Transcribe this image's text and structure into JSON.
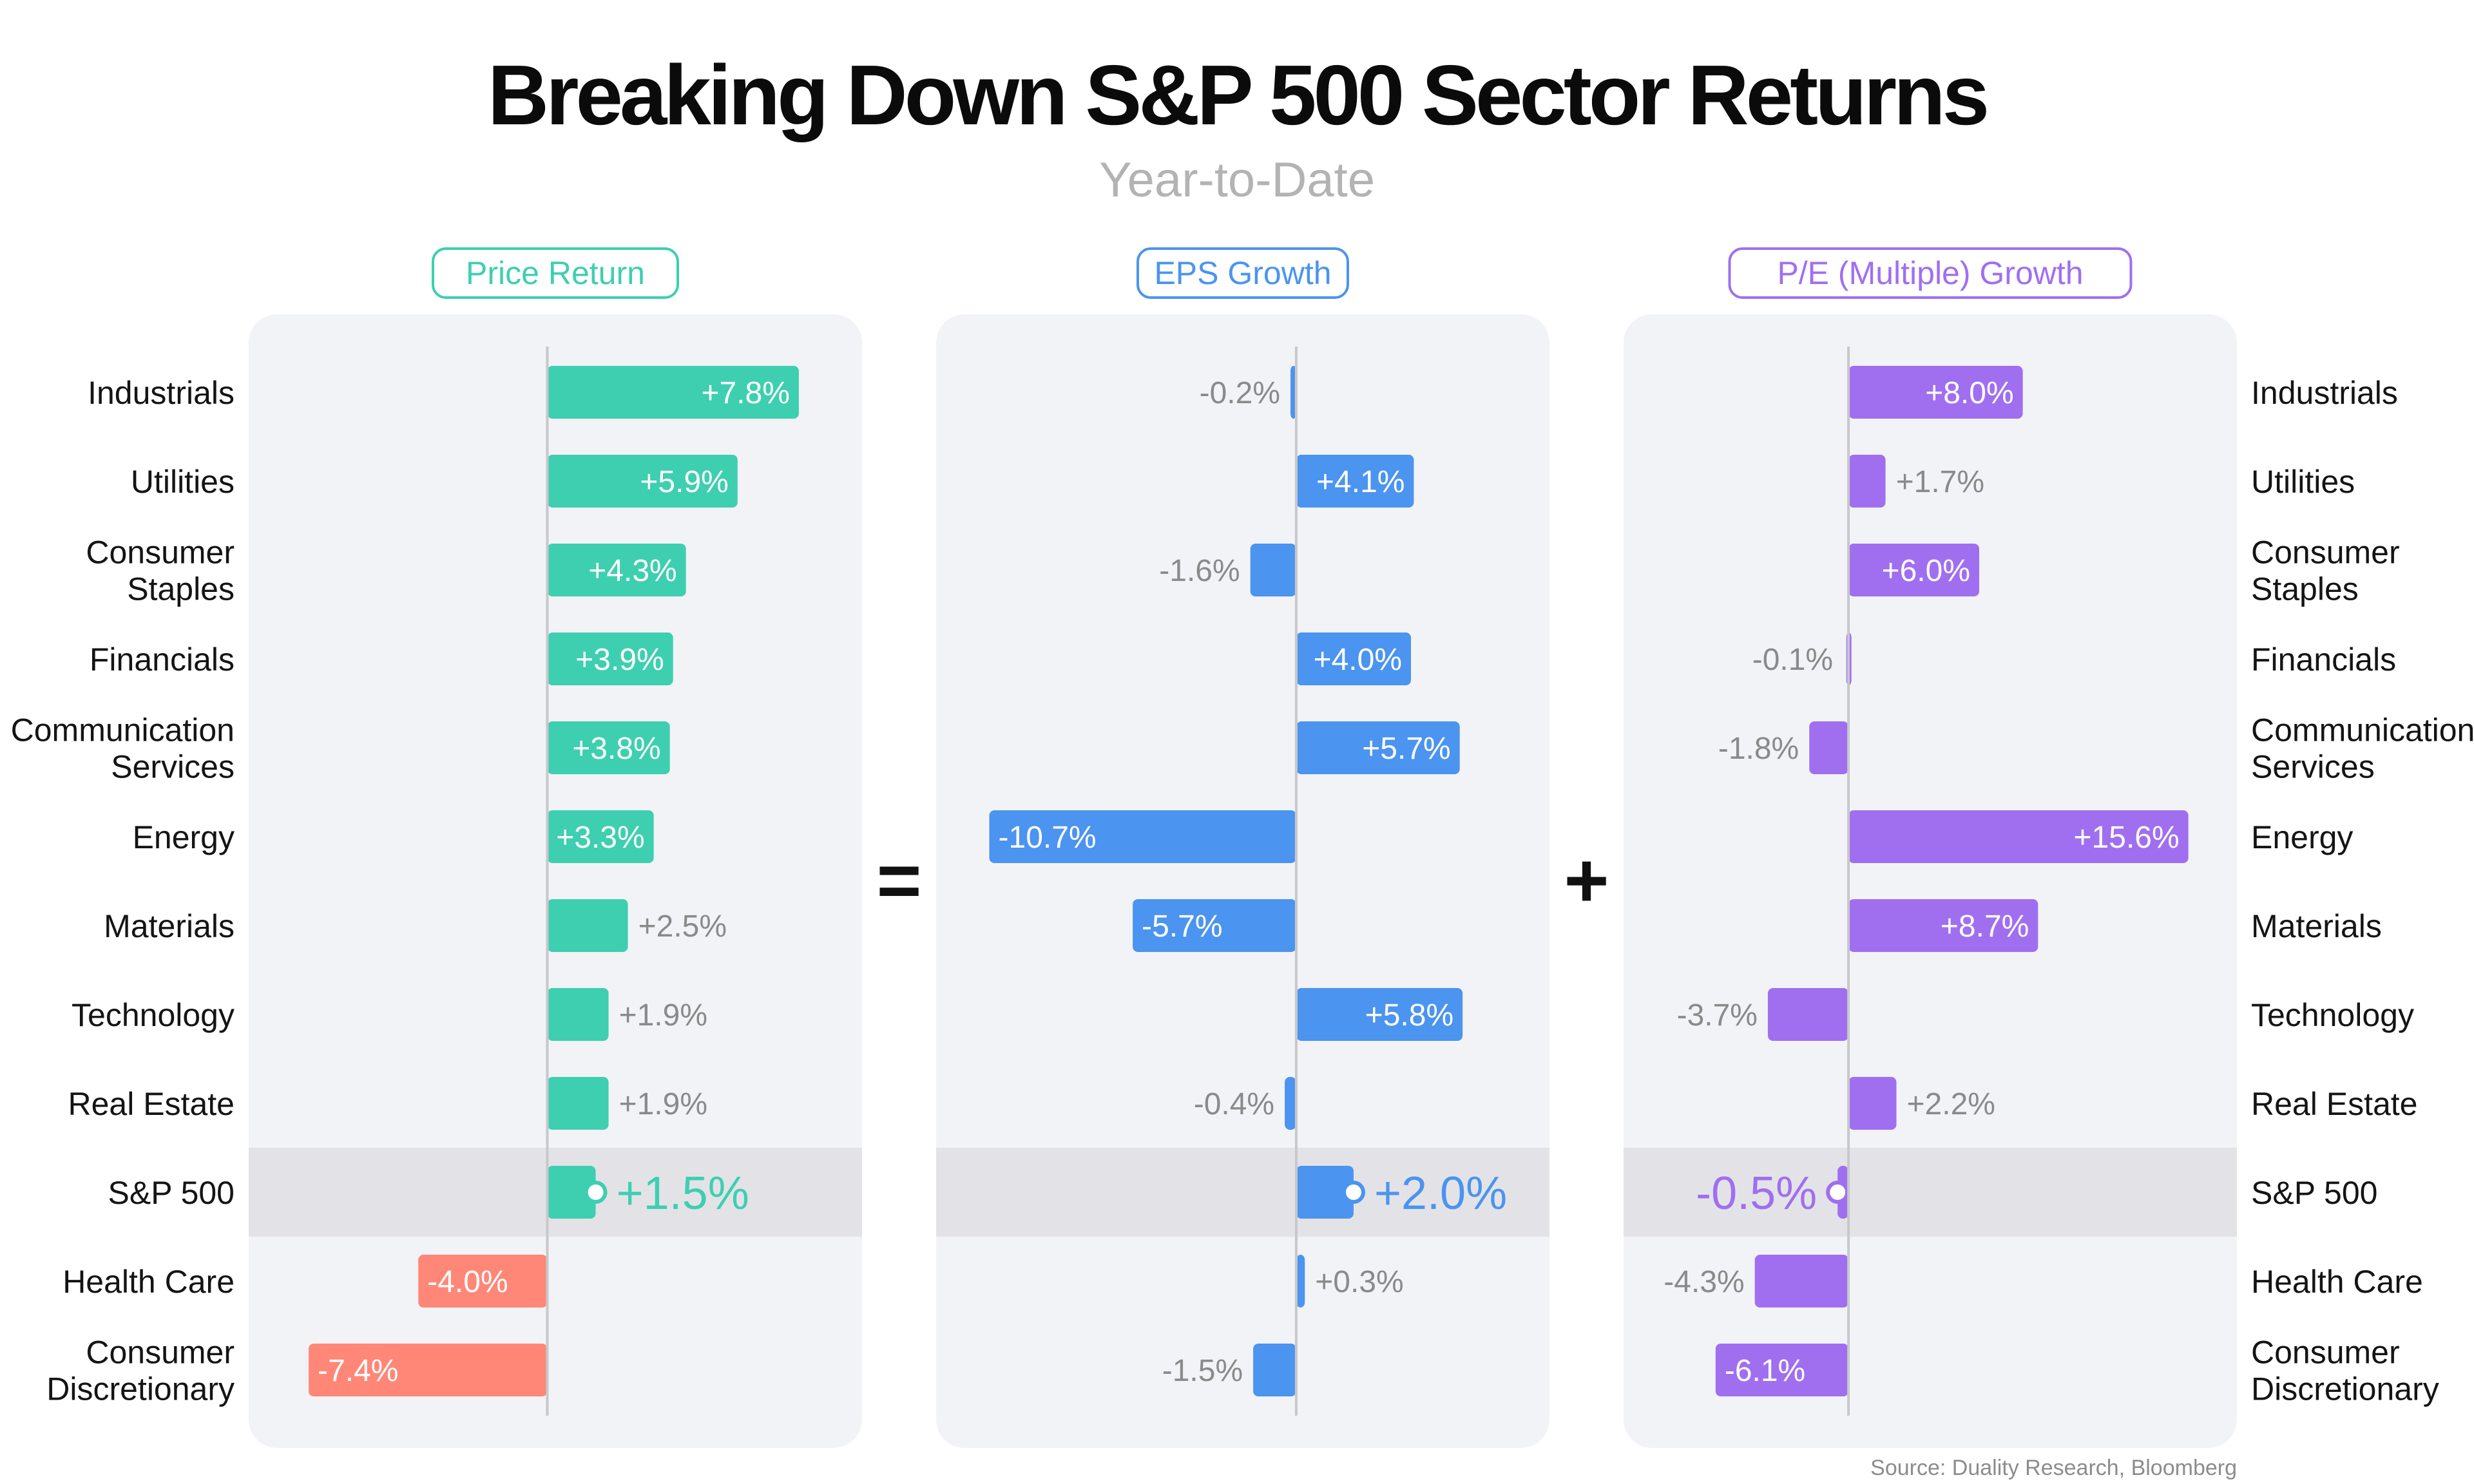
{
  "header": {
    "title": "Breaking Down S&P 500 Sector Returns",
    "subtitle": "Year-to-Date"
  },
  "source": "Source: Duality Research, Bloomberg",
  "operators": [
    "=",
    "+"
  ],
  "colors": {
    "price": "#3dcfb0",
    "price_negative": "#ff8777",
    "eps": "#4b94ef",
    "pe": "#a06ff0",
    "panel_bg": "#f2f3f6",
    "highlight_bg": "#e3e3e7",
    "outside_label": "#8a8a8a",
    "axis": "#c8c8cc"
  },
  "chart_data": {
    "type": "bar",
    "orientation": "horizontal",
    "categories": [
      [
        "Industrials"
      ],
      [
        "Utilities"
      ],
      [
        "Consumer",
        "Staples"
      ],
      [
        "Financials"
      ],
      [
        "Communication",
        "Services"
      ],
      [
        "Energy"
      ],
      [
        "Materials"
      ],
      [
        "Technology"
      ],
      [
        "Real Estate"
      ],
      [
        "S&P 500"
      ],
      [
        "Health Care"
      ],
      [
        "Consumer",
        "Discretionary"
      ]
    ],
    "highlight_category": "S&P 500",
    "series": [
      {
        "name": "Price Return",
        "color": "#3dcfb0",
        "values": [
          7.8,
          5.9,
          4.3,
          3.9,
          3.8,
          3.3,
          2.5,
          1.9,
          1.9,
          1.5,
          -4.0,
          -7.4
        ],
        "labels": [
          "+7.8%",
          "+5.9%",
          "+4.3%",
          "+3.9%",
          "+3.8%",
          "+3.3%",
          "+2.5%",
          "+1.9%",
          "+1.9%",
          "+1.5%",
          "-4.0%",
          "-7.4%"
        ],
        "xlim": [
          -8.5,
          9.2
        ]
      },
      {
        "name": "EPS Growth",
        "color": "#4b94ef",
        "values": [
          -0.2,
          4.1,
          -1.6,
          4.0,
          5.7,
          -10.7,
          -5.7,
          5.8,
          -0.4,
          2.0,
          0.3,
          -1.5
        ],
        "labels": [
          "-0.2%",
          "+4.1%",
          "-1.6%",
          "+4.0%",
          "+5.7%",
          "-10.7%",
          "-5.7%",
          "+5.8%",
          "-0.4%",
          "+2.0%",
          "+0.3%",
          "-1.5%"
        ],
        "xlim": [
          -11.7,
          8.2
        ]
      },
      {
        "name": "P/E (Multiple) Growth",
        "color": "#a06ff0",
        "values": [
          8.0,
          1.7,
          6.0,
          -0.1,
          -1.8,
          15.6,
          8.7,
          -3.7,
          2.2,
          -0.5,
          -4.3,
          -6.1
        ],
        "labels": [
          "+8.0%",
          "+1.7%",
          "+6.0%",
          "-0.1%",
          "-1.8%",
          "+15.6%",
          "+8.7%",
          "-3.7%",
          "+2.2%",
          "-0.5%",
          "-4.3%",
          "-6.1%"
        ],
        "xlim": [
          -9.2,
          17.0
        ]
      }
    ]
  }
}
